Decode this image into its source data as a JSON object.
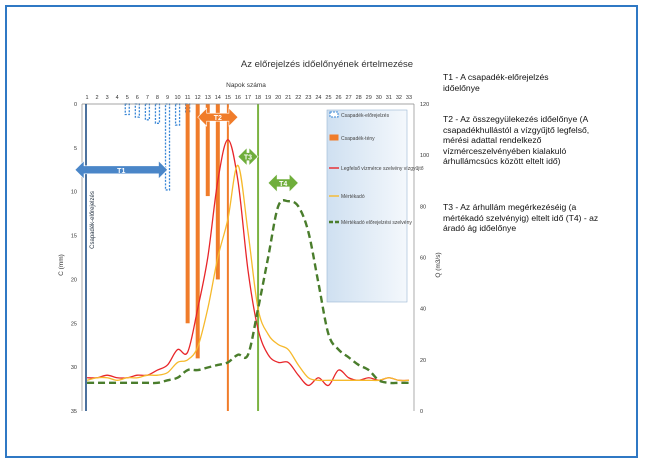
{
  "accent_color": "#2f78c4",
  "chart_data": {
    "type": "line",
    "title": "Az előrejelzés időelőnyének értelmezése",
    "xlabel": "Napok száma",
    "ylabel_left": "C (mm)",
    "ylabel_right": "Q (m3/s)",
    "x_ticks": [
      1,
      2,
      3,
      4,
      5,
      6,
      7,
      8,
      9,
      10,
      11,
      12,
      13,
      14,
      15,
      16,
      17,
      18,
      19,
      20,
      21,
      22,
      23,
      24,
      25,
      26,
      27,
      28,
      29,
      30,
      31,
      32,
      33
    ],
    "xlim": [
      1,
      33
    ],
    "ylim_left": [
      0,
      35
    ],
    "ylim_left_ticks": [
      0,
      5,
      10,
      15,
      20,
      25,
      30,
      35
    ],
    "ylim_right": [
      0,
      120
    ],
    "ylim_right_ticks": [
      0,
      20,
      40,
      60,
      80,
      100,
      120
    ],
    "left_axis_reversed": true,
    "legend": {
      "position": "right",
      "entries": [
        {
          "name": "Csapadék-előrejelzés",
          "color": "#3a87d6",
          "style": "dashed-bar"
        },
        {
          "name": "Csapadék-tény",
          "color": "#f07c2a",
          "style": "bar"
        },
        {
          "name": "Legfelső vízmérce szelvény vízgyűjtő",
          "color": "#e8262a",
          "style": "line"
        },
        {
          "name": "Mértékadó",
          "color": "#f6b92b",
          "style": "line"
        },
        {
          "name": "Mértékadó előrejelzési szelvény",
          "color": "#4a7d2c",
          "style": "dashed-line"
        }
      ]
    },
    "series": [
      {
        "name": "Csapadék-előrejelzés",
        "kind": "bar-left",
        "color": "#3a87d6",
        "x": [
          5,
          6,
          7,
          8,
          9,
          10,
          11
        ],
        "values": [
          1.2,
          1.5,
          1.8,
          2.2,
          9.8,
          2.4,
          1.0
        ]
      },
      {
        "name": "Csapadék-tény",
        "kind": "bar-left",
        "color": "#f07c2a",
        "x": [
          11,
          12,
          13,
          14
        ],
        "values": [
          25.0,
          29.0,
          10.5,
          20.0
        ]
      },
      {
        "name": "Legfelső vízmérce szelvény vízgyűjtő",
        "kind": "line-right",
        "color": "#e8262a",
        "x": [
          1,
          2,
          3,
          4,
          5,
          6,
          7,
          8,
          9,
          10,
          11,
          12,
          13,
          14,
          15,
          16,
          17,
          18,
          19,
          20,
          21,
          22,
          23,
          24,
          25,
          26,
          27,
          28,
          29,
          30,
          31,
          32,
          33
        ],
        "values": [
          13,
          13,
          14,
          13,
          13,
          14,
          14,
          16,
          18,
          24,
          23,
          40,
          60,
          90,
          106,
          90,
          55,
          32,
          22,
          19,
          19,
          14,
          10,
          13,
          10,
          16,
          13,
          12,
          13,
          12,
          13,
          12,
          12
        ]
      },
      {
        "name": "Mértékadó",
        "kind": "line-right",
        "color": "#f6b92b",
        "x": [
          1,
          2,
          3,
          4,
          5,
          6,
          7,
          8,
          9,
          10,
          11,
          12,
          13,
          14,
          15,
          16,
          17,
          18,
          19,
          20,
          21,
          22,
          23,
          24,
          25,
          26,
          27,
          28,
          29,
          30,
          31,
          32,
          33
        ],
        "values": [
          12,
          13,
          13,
          12,
          13,
          13,
          14,
          14,
          15,
          19,
          20,
          25,
          40,
          60,
          75,
          96,
          70,
          40,
          30,
          26,
          24,
          18,
          13,
          12,
          12,
          12,
          12,
          12,
          12,
          12,
          13,
          12,
          12
        ]
      },
      {
        "name": "Mértékadó előrejelzési szelvény",
        "kind": "line-right",
        "color": "#4a7d2c",
        "dashed": true,
        "x": [
          1,
          2,
          3,
          4,
          5,
          6,
          7,
          8,
          9,
          10,
          11,
          12,
          13,
          14,
          15,
          16,
          17,
          18,
          19,
          20,
          21,
          22,
          23,
          24,
          25,
          26,
          27,
          28,
          29,
          30,
          31,
          32,
          33
        ],
        "values": [
          11,
          11,
          11,
          11,
          11,
          11,
          11,
          11,
          12,
          13,
          16,
          16,
          17,
          18,
          19,
          22,
          22,
          40,
          60,
          80,
          82,
          80,
          70,
          50,
          30,
          24,
          21,
          18,
          16,
          12,
          11,
          11,
          11
        ]
      }
    ],
    "vertical_lines": [
      {
        "x": 15,
        "color": "#f07c2a"
      },
      {
        "x": 18,
        "color": "#7cb342"
      }
    ],
    "annotations": [
      {
        "label": "Csapadék-előrejelzés",
        "x": 1,
        "orientation": "vertical",
        "color": "#1f4f86"
      },
      {
        "label": "T1",
        "x_start": 1,
        "x_end": 9,
        "y_left": 7.5,
        "color": "#4a86c8",
        "kind": "double-arrow"
      },
      {
        "label": "T2",
        "x_start": 12,
        "x_end": 16,
        "y_left": 1.5,
        "color": "#f07c2a",
        "kind": "double-arrow"
      },
      {
        "label": "T3",
        "x_start": 16,
        "x_end": 18,
        "y_left": 6.0,
        "color": "#6fae3b",
        "kind": "double-arrow"
      },
      {
        "label": "T4",
        "x_start": 19,
        "x_end": 22,
        "y_left": 9.0,
        "color": "#6fae3b",
        "kind": "double-arrow"
      }
    ]
  },
  "notes": [
    "T1 - A csapadék-előrejelzés időelőnye",
    "T2 - Az összegyülekezés időelőnye (A csapadékhullástól a vízgyűjtő legfelső, mérési adattal rendelkező vízmérceszelvényében kialakuló árhullámcsúcs között eltelt idő)",
    "T3 - Az árhullám megérkezéséig (a mértékadó szelvényig) eltelt idő (T4) - az áradó ág időelőnye"
  ]
}
